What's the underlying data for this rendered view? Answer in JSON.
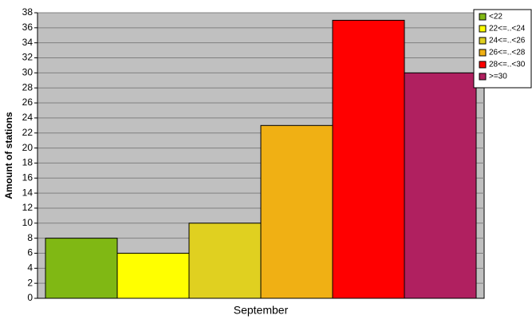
{
  "chart_data": {
    "type": "bar",
    "y_label": "Amount of stations",
    "categories": [
      "September"
    ],
    "series": [
      {
        "name": "<22",
        "color": "#80b814",
        "values": [
          8
        ]
      },
      {
        "name": "22<=..<24",
        "color": "#ffff00",
        "values": [
          6
        ]
      },
      {
        "name": "24<=..<26",
        "color": "#e0d020",
        "values": [
          10
        ]
      },
      {
        "name": "26<=..<28",
        "color": "#f0b014",
        "values": [
          23
        ]
      },
      {
        "name": "28<=..<30",
        "color": "#ff0000",
        "values": [
          37
        ]
      },
      {
        "name": ">=30",
        "color": "#b02060",
        "values": [
          30
        ]
      }
    ],
    "ylim": [
      0,
      38
    ],
    "yticks": [
      0,
      2,
      4,
      6,
      8,
      10,
      12,
      14,
      16,
      18,
      20,
      22,
      24,
      26,
      28,
      30,
      32,
      34,
      36,
      38
    ],
    "grid": true,
    "legend": "top-right"
  }
}
